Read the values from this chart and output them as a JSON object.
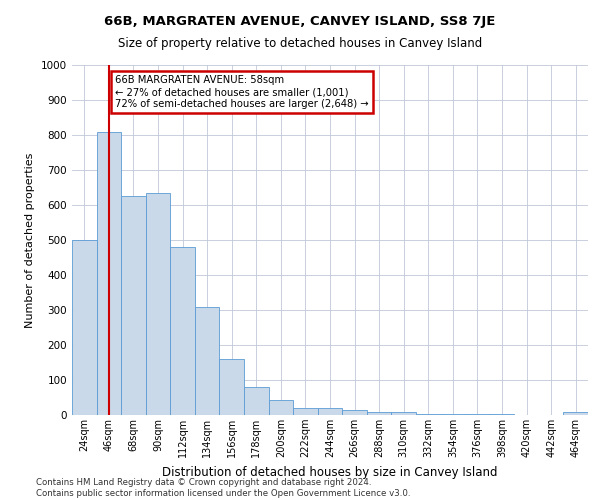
{
  "title": "66B, MARGRATEN AVENUE, CANVEY ISLAND, SS8 7JE",
  "subtitle": "Size of property relative to detached houses in Canvey Island",
  "xlabel": "Distribution of detached houses by size in Canvey Island",
  "ylabel": "Number of detached properties",
  "footer_line1": "Contains HM Land Registry data © Crown copyright and database right 2024.",
  "footer_line2": "Contains public sector information licensed under the Open Government Licence v3.0.",
  "property_label": "66B MARGRATEN AVENUE: 58sqm",
  "annotation_line2": "← 27% of detached houses are smaller (1,001)",
  "annotation_line3": "72% of semi-detached houses are larger (2,648) →",
  "bar_categories": [
    "24sqm",
    "46sqm",
    "68sqm",
    "90sqm",
    "112sqm",
    "134sqm",
    "156sqm",
    "178sqm",
    "200sqm",
    "222sqm",
    "244sqm",
    "266sqm",
    "288sqm",
    "310sqm",
    "332sqm",
    "354sqm",
    "376sqm",
    "398sqm",
    "420sqm",
    "442sqm",
    "464sqm"
  ],
  "bar_values": [
    500,
    810,
    625,
    635,
    480,
    310,
    160,
    80,
    42,
    20,
    20,
    14,
    10,
    8,
    4,
    4,
    3,
    2,
    1,
    0,
    8
  ],
  "bar_color": "#c9d9ea",
  "bar_edge_color": "#5b9bd5",
  "red_line_color": "#cc0000",
  "red_line_x": 1,
  "annotation_box_color": "#cc0000",
  "background_color": "#ffffff",
  "grid_color": "#c0c8d8",
  "ylim": [
    0,
    1000
  ],
  "yticks": [
    0,
    100,
    200,
    300,
    400,
    500,
    600,
    700,
    800,
    900,
    1000
  ]
}
